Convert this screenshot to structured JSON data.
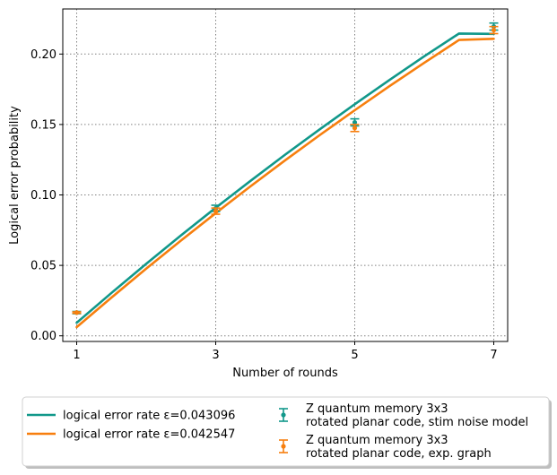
{
  "chart_data": {
    "type": "line",
    "xlabel": "Number of rounds",
    "ylabel": "Logical error probability",
    "xlim": [
      0.8,
      7.2
    ],
    "ylim": [
      -0.004,
      0.232
    ],
    "xticks": [
      1,
      3,
      5,
      7
    ],
    "xtick_labels": [
      "1",
      "3",
      "5",
      "7"
    ],
    "yticks": [
      0.0,
      0.05,
      0.1,
      0.15,
      0.2
    ],
    "ytick_labels": [
      "0.00",
      "0.05",
      "0.10",
      "0.15",
      "0.20"
    ],
    "grid": true,
    "legend_position": "below plot",
    "fit_lines": [
      {
        "name": "logical error rate ε=0.043096",
        "color": "#11988a",
        "x": [
          1,
          1.5,
          2,
          2.5,
          3,
          3.5,
          4,
          4.5,
          5,
          5.5,
          6,
          6.5,
          7
        ],
        "y": [
          0.0093,
          0.0305,
          0.0511,
          0.0713,
          0.0909,
          0.11,
          0.1286,
          0.1467,
          0.1644,
          0.1816,
          0.1984,
          0.2146,
          0.2143
        ]
      },
      {
        "name": "logical error rate ε=0.042547",
        "color": "#f77f0e",
        "x": [
          1,
          1.5,
          2,
          2.5,
          3,
          3.5,
          4,
          4.5,
          5,
          5.5,
          6,
          6.5,
          7
        ],
        "y": [
          0.0062,
          0.0272,
          0.0477,
          0.0676,
          0.0871,
          0.1061,
          0.1246,
          0.1426,
          0.1601,
          0.1772,
          0.1938,
          0.21,
          0.2108
        ]
      }
    ],
    "error_series": [
      {
        "name": "Z quantum memory 3x3\nrotated planar code, stim noise model",
        "color": "#11988a",
        "x": [
          1,
          3,
          5,
          7
        ],
        "y": [
          0.0165,
          0.0905,
          0.1515,
          0.2195
        ],
        "err": [
          0.0008,
          0.0022,
          0.0025,
          0.0025
        ]
      },
      {
        "name": "Z quantum memory 3x3\nrotated planar code, exp. graph",
        "color": "#f77f0e",
        "x": [
          1,
          3,
          5,
          7
        ],
        "y": [
          0.0165,
          0.0885,
          0.1475,
          0.217
        ],
        "err": [
          0.0005,
          0.0022,
          0.0025,
          0.0025
        ]
      }
    ]
  }
}
